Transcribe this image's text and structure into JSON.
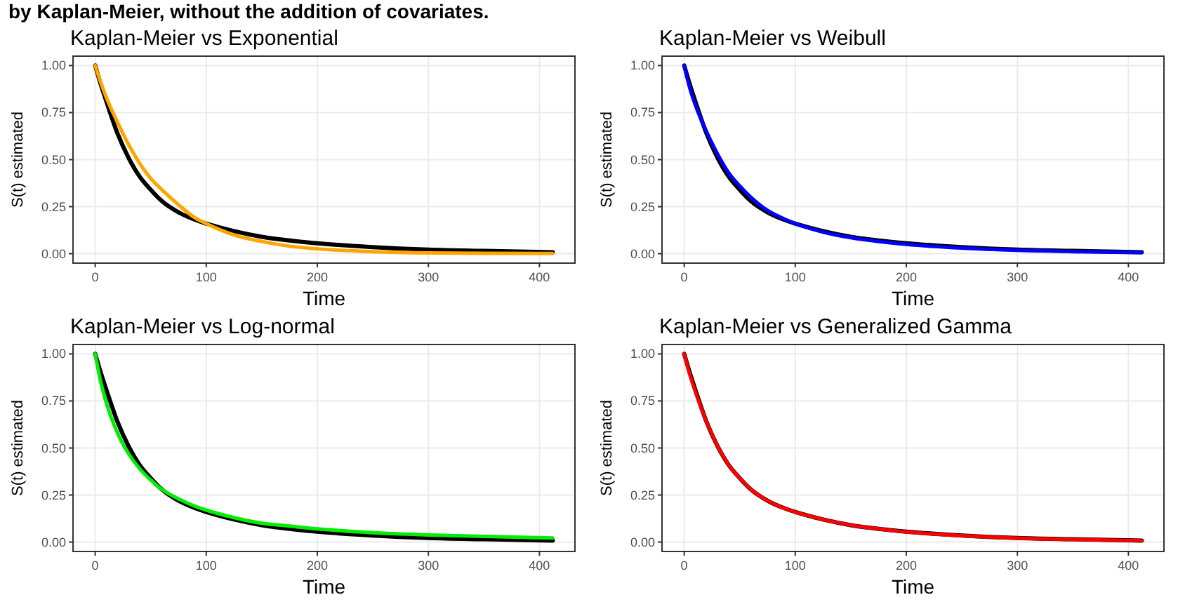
{
  "chart_data": [
    {
      "type": "line",
      "title": "Kaplan-Meier vs Exponential",
      "xlabel": "Time",
      "ylabel": "S(t) estimated",
      "annotations": [
        "by Kaplan-Meier, without the addition of covariates."
      ],
      "x": [
        0,
        5,
        10,
        20,
        30,
        40,
        50,
        60,
        75,
        90,
        100,
        125,
        150,
        175,
        200,
        250,
        300,
        350,
        412
      ],
      "xlim": [
        -20,
        432
      ],
      "xticks": [
        0,
        100,
        200,
        300,
        400
      ],
      "ylim": [
        -0.05,
        1.05
      ],
      "yticks": [
        {
          "value": 0,
          "label": "0.00"
        },
        {
          "value": 0.25,
          "label": "0.25"
        },
        {
          "value": 0.5,
          "label": "0.50"
        },
        {
          "value": 0.75,
          "label": "0.75"
        },
        {
          "value": 1,
          "label": "1.00"
        }
      ],
      "grid": true,
      "series": [
        {
          "color": "#000000",
          "values": [
            1,
            0.9,
            0.81,
            0.64,
            0.51,
            0.41,
            0.34,
            0.28,
            0.22,
            0.18,
            0.16,
            0.12,
            0.09,
            0.07,
            0.055,
            0.035,
            0.022,
            0.015,
            0.008
          ]
        },
        {
          "color": "#ffa500",
          "values": [
            1,
            0.91,
            0.83,
            0.7,
            0.58,
            0.48,
            0.4,
            0.34,
            0.26,
            0.19,
            0.16,
            0.1,
            0.065,
            0.04,
            0.026,
            0.011,
            0.004,
            0.002,
            0.001
          ]
        }
      ]
    },
    {
      "type": "line",
      "title": "Kaplan-Meier vs Weibull",
      "xlabel": "Time",
      "ylabel": "S(t) estimated",
      "x": [
        0,
        5,
        10,
        20,
        30,
        40,
        50,
        60,
        75,
        90,
        100,
        125,
        150,
        175,
        200,
        250,
        300,
        350,
        412
      ],
      "xlim": [
        -20,
        432
      ],
      "xticks": [
        0,
        100,
        200,
        300,
        400
      ],
      "ylim": [
        -0.05,
        1.05
      ],
      "yticks": [
        {
          "value": 0,
          "label": "0.00"
        },
        {
          "value": 0.25,
          "label": "0.25"
        },
        {
          "value": 0.5,
          "label": "0.50"
        },
        {
          "value": 0.75,
          "label": "0.75"
        },
        {
          "value": 1,
          "label": "1.00"
        }
      ],
      "grid": true,
      "series": [
        {
          "color": "#000000",
          "values": [
            1,
            0.9,
            0.81,
            0.64,
            0.51,
            0.41,
            0.34,
            0.28,
            0.22,
            0.18,
            0.16,
            0.12,
            0.09,
            0.07,
            0.055,
            0.035,
            0.022,
            0.015,
            0.008
          ]
        },
        {
          "color": "#0000ff",
          "values": [
            1,
            0.88,
            0.79,
            0.65,
            0.53,
            0.43,
            0.36,
            0.3,
            0.23,
            0.185,
            0.16,
            0.115,
            0.085,
            0.065,
            0.05,
            0.03,
            0.018,
            0.011,
            0.006
          ]
        }
      ]
    },
    {
      "type": "line",
      "title": "Kaplan-Meier vs Log-normal",
      "xlabel": "Time",
      "ylabel": "S(t) estimated",
      "x": [
        0,
        5,
        10,
        20,
        30,
        40,
        50,
        60,
        75,
        90,
        100,
        125,
        150,
        175,
        200,
        250,
        300,
        350,
        412
      ],
      "xlim": [
        -20,
        432
      ],
      "xticks": [
        0,
        100,
        200,
        300,
        400
      ],
      "ylim": [
        -0.05,
        1.05
      ],
      "yticks": [
        {
          "value": 0,
          "label": "0.00"
        },
        {
          "value": 0.25,
          "label": "0.25"
        },
        {
          "value": 0.5,
          "label": "0.50"
        },
        {
          "value": 0.75,
          "label": "0.75"
        },
        {
          "value": 1,
          "label": "1.00"
        }
      ],
      "grid": true,
      "series": [
        {
          "color": "#000000",
          "values": [
            1,
            0.9,
            0.81,
            0.64,
            0.51,
            0.41,
            0.34,
            0.28,
            0.22,
            0.18,
            0.16,
            0.12,
            0.09,
            0.07,
            0.055,
            0.035,
            0.022,
            0.015,
            0.008
          ]
        },
        {
          "color": "#00ee00",
          "values": [
            1,
            0.85,
            0.74,
            0.58,
            0.47,
            0.39,
            0.33,
            0.28,
            0.23,
            0.19,
            0.17,
            0.13,
            0.1,
            0.085,
            0.07,
            0.05,
            0.038,
            0.03,
            0.022
          ]
        }
      ]
    },
    {
      "type": "line",
      "title": "Kaplan-Meier vs Generalized Gamma",
      "xlabel": "Time",
      "ylabel": "S(t) estimated",
      "x": [
        0,
        5,
        10,
        20,
        30,
        40,
        50,
        60,
        75,
        90,
        100,
        125,
        150,
        175,
        200,
        250,
        300,
        350,
        412
      ],
      "xlim": [
        -20,
        432
      ],
      "xticks": [
        0,
        100,
        200,
        300,
        400
      ],
      "ylim": [
        -0.05,
        1.05
      ],
      "yticks": [
        {
          "value": 0,
          "label": "0.00"
        },
        {
          "value": 0.25,
          "label": "0.25"
        },
        {
          "value": 0.5,
          "label": "0.50"
        },
        {
          "value": 0.75,
          "label": "0.75"
        },
        {
          "value": 1,
          "label": "1.00"
        }
      ],
      "grid": true,
      "series": [
        {
          "color": "#000000",
          "values": [
            1,
            0.9,
            0.81,
            0.64,
            0.51,
            0.41,
            0.34,
            0.28,
            0.22,
            0.18,
            0.16,
            0.12,
            0.09,
            0.07,
            0.055,
            0.035,
            0.022,
            0.015,
            0.008
          ]
        },
        {
          "color": "#ff0000",
          "values": [
            1,
            0.89,
            0.8,
            0.64,
            0.51,
            0.41,
            0.34,
            0.28,
            0.22,
            0.18,
            0.16,
            0.12,
            0.09,
            0.07,
            0.054,
            0.034,
            0.021,
            0.014,
            0.007
          ]
        }
      ]
    }
  ]
}
